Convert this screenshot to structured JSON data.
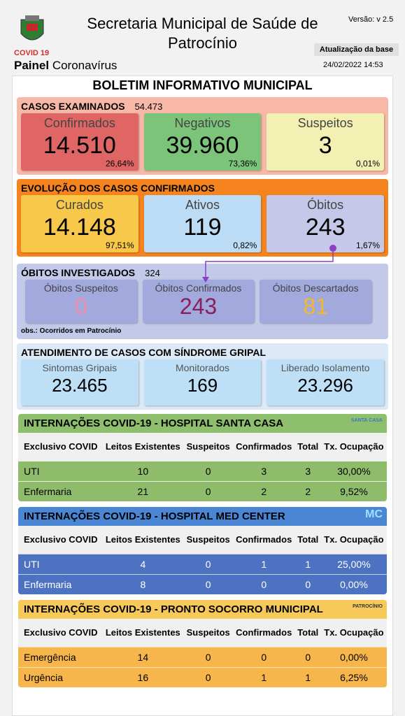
{
  "header": {
    "title": "Secretaria Municipal de Saúde de Patrocínio",
    "version": "Versão: v 2.5",
    "covid_label": "COVID 19",
    "panel_bold": "Painel",
    "panel_rest": "Coronavírus",
    "update_label": "Atualização da base",
    "update_date": "24/02/2022 14:53"
  },
  "bulletin_title": "BOLETIM INFORMATIVO MUNICIPAL",
  "sections": [
    {
      "title": "CASOS EXAMINADOS",
      "total": "54.473",
      "cards": [
        {
          "label": "Confirmados",
          "value": "14.510",
          "pct": "26,64%"
        },
        {
          "label": "Negativos",
          "value": "39.960",
          "pct": "73,36%"
        },
        {
          "label": "Suspeitos",
          "value": "3",
          "pct": "0,01%"
        }
      ]
    },
    {
      "title": "EVOLUÇÃO DOS CASOS CONFIRMADOS",
      "cards": [
        {
          "label": "Curados",
          "value": "14.148",
          "pct": "97,51%"
        },
        {
          "label": "Ativos",
          "value": "119",
          "pct": "0,82%"
        },
        {
          "label": "Óbitos",
          "value": "243",
          "pct": "1,67%"
        }
      ]
    },
    {
      "title": "ÓBITOS INVESTIGADOS",
      "total": "324",
      "note": "obs.: Ocorridos em Patrocínio",
      "cards": [
        {
          "label": "Óbitos Suspeitos",
          "value": "0"
        },
        {
          "label": "Óbitos Confirmados",
          "value": "243"
        },
        {
          "label": "Óbitos Descartados",
          "value": "81"
        }
      ]
    },
    {
      "title": "ATENDIMENTO DE CASOS COM SÍNDROME GRIPAL",
      "cards": [
        {
          "label": "Sintomas Gripais",
          "value": "23.465"
        },
        {
          "label": "Monitorados",
          "value": "169"
        },
        {
          "label": "Liberado Isolamento",
          "value": "23.296"
        }
      ]
    }
  ],
  "tables": [
    {
      "title": "INTERNAÇÕES COVID-19 - HOSPITAL SANTA CASA",
      "logo": "SANTA CASA",
      "headers": [
        "Exclusivo COVID",
        "Leitos Existentes",
        "Suspeitos",
        "Confirmados",
        "Total",
        "Tx. Ocupação"
      ],
      "rows": [
        [
          "UTI",
          "10",
          "0",
          "3",
          "3",
          "30,00%"
        ],
        [
          "Enfermaria",
          "21",
          "0",
          "2",
          "2",
          "9,52%"
        ]
      ]
    },
    {
      "title": "INTERNAÇÕES COVID-19 - HOSPITAL MED CENTER",
      "logo": "MC",
      "headers": [
        "Exclusivo COVID",
        "Leitos Existentes",
        "Suspeitos",
        "Confirmados",
        "Total",
        "Tx. Ocupação"
      ],
      "rows": [
        [
          "UTI",
          "4",
          "0",
          "1",
          "1",
          "25,00%"
        ],
        [
          "Enfermaria",
          "8",
          "0",
          "0",
          "0",
          "0,00%"
        ]
      ]
    },
    {
      "title": "INTERNAÇÕES COVID-19 - PRONTO SOCORRO MUNICIPAL",
      "logo": "PATROCÍNIO",
      "headers": [
        "Exclusivo COVID",
        "Leitos Existentes",
        "Suspeitos",
        "Confirmados",
        "Total",
        "Tx. Ocupação"
      ],
      "rows": [
        [
          "Emergência",
          "14",
          "0",
          "0",
          "0",
          "0,00%"
        ],
        [
          "Urgência",
          "16",
          "0",
          "1",
          "1",
          "6,25%"
        ]
      ]
    }
  ]
}
